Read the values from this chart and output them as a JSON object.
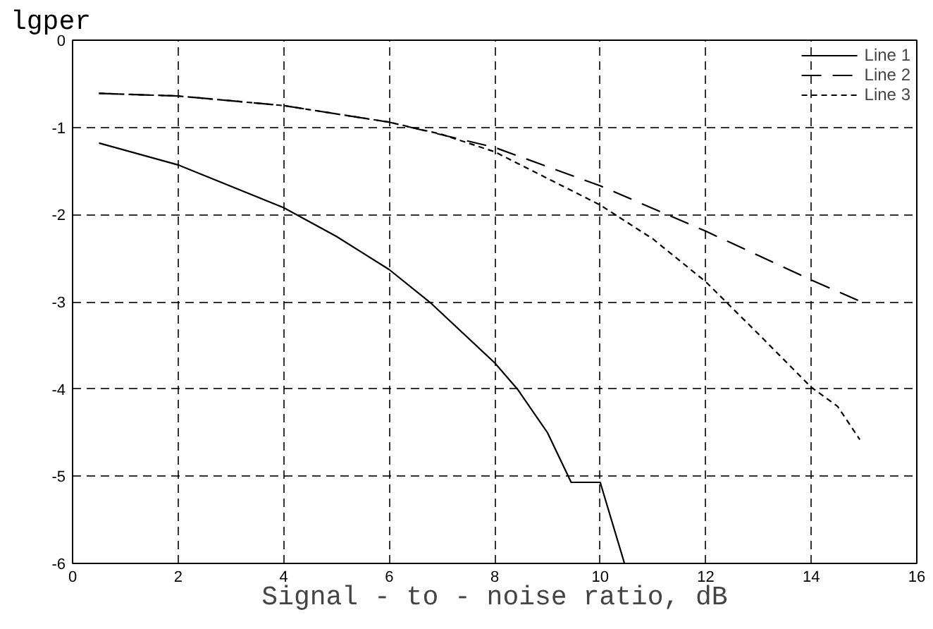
{
  "chart_data": {
    "type": "line",
    "xlabel": "Signal - to - noise ratio, dB",
    "ylabel": "lgper",
    "xlim": [
      0,
      16
    ],
    "ylim": [
      -6,
      0
    ],
    "xticks": [
      0,
      2,
      4,
      6,
      8,
      10,
      12,
      14,
      16
    ],
    "yticks": [
      -6,
      -5,
      -4,
      -3,
      -2,
      -1,
      0
    ],
    "grid": true,
    "legend": "top right",
    "series": [
      {
        "name": "Line 1",
        "color": "#000000",
        "line_style": "solid",
        "x": [
          0.5,
          2,
          4,
          5,
          6,
          6.8,
          8,
          8.43,
          9,
          9.45,
          10,
          10.46
        ],
        "values": [
          -1.18,
          -1.43,
          -1.92,
          -2.25,
          -2.63,
          -3.02,
          -3.7,
          -4.0,
          -4.5,
          -5.07,
          -5.07,
          -6.0
        ]
      },
      {
        "name": "Line 2",
        "color": "#000000",
        "line_style": "dashed",
        "x": [
          0.5,
          2,
          4,
          6,
          8,
          10,
          12,
          14,
          14.95
        ],
        "values": [
          -0.61,
          -0.64,
          -0.75,
          -0.94,
          -1.23,
          -1.67,
          -2.19,
          -2.75,
          -3.0
        ]
      },
      {
        "name": "Line 3",
        "color": "#000000",
        "line_style": "dashed",
        "x": [
          0.5,
          2,
          4,
          6,
          7,
          8,
          10,
          11,
          12,
          13,
          14,
          14.5,
          14.92
        ],
        "values": [
          -0.61,
          -0.64,
          -0.75,
          -0.94,
          -1.08,
          -1.28,
          -1.89,
          -2.28,
          -2.77,
          -3.37,
          -3.98,
          -4.2,
          -4.58
        ]
      }
    ]
  }
}
